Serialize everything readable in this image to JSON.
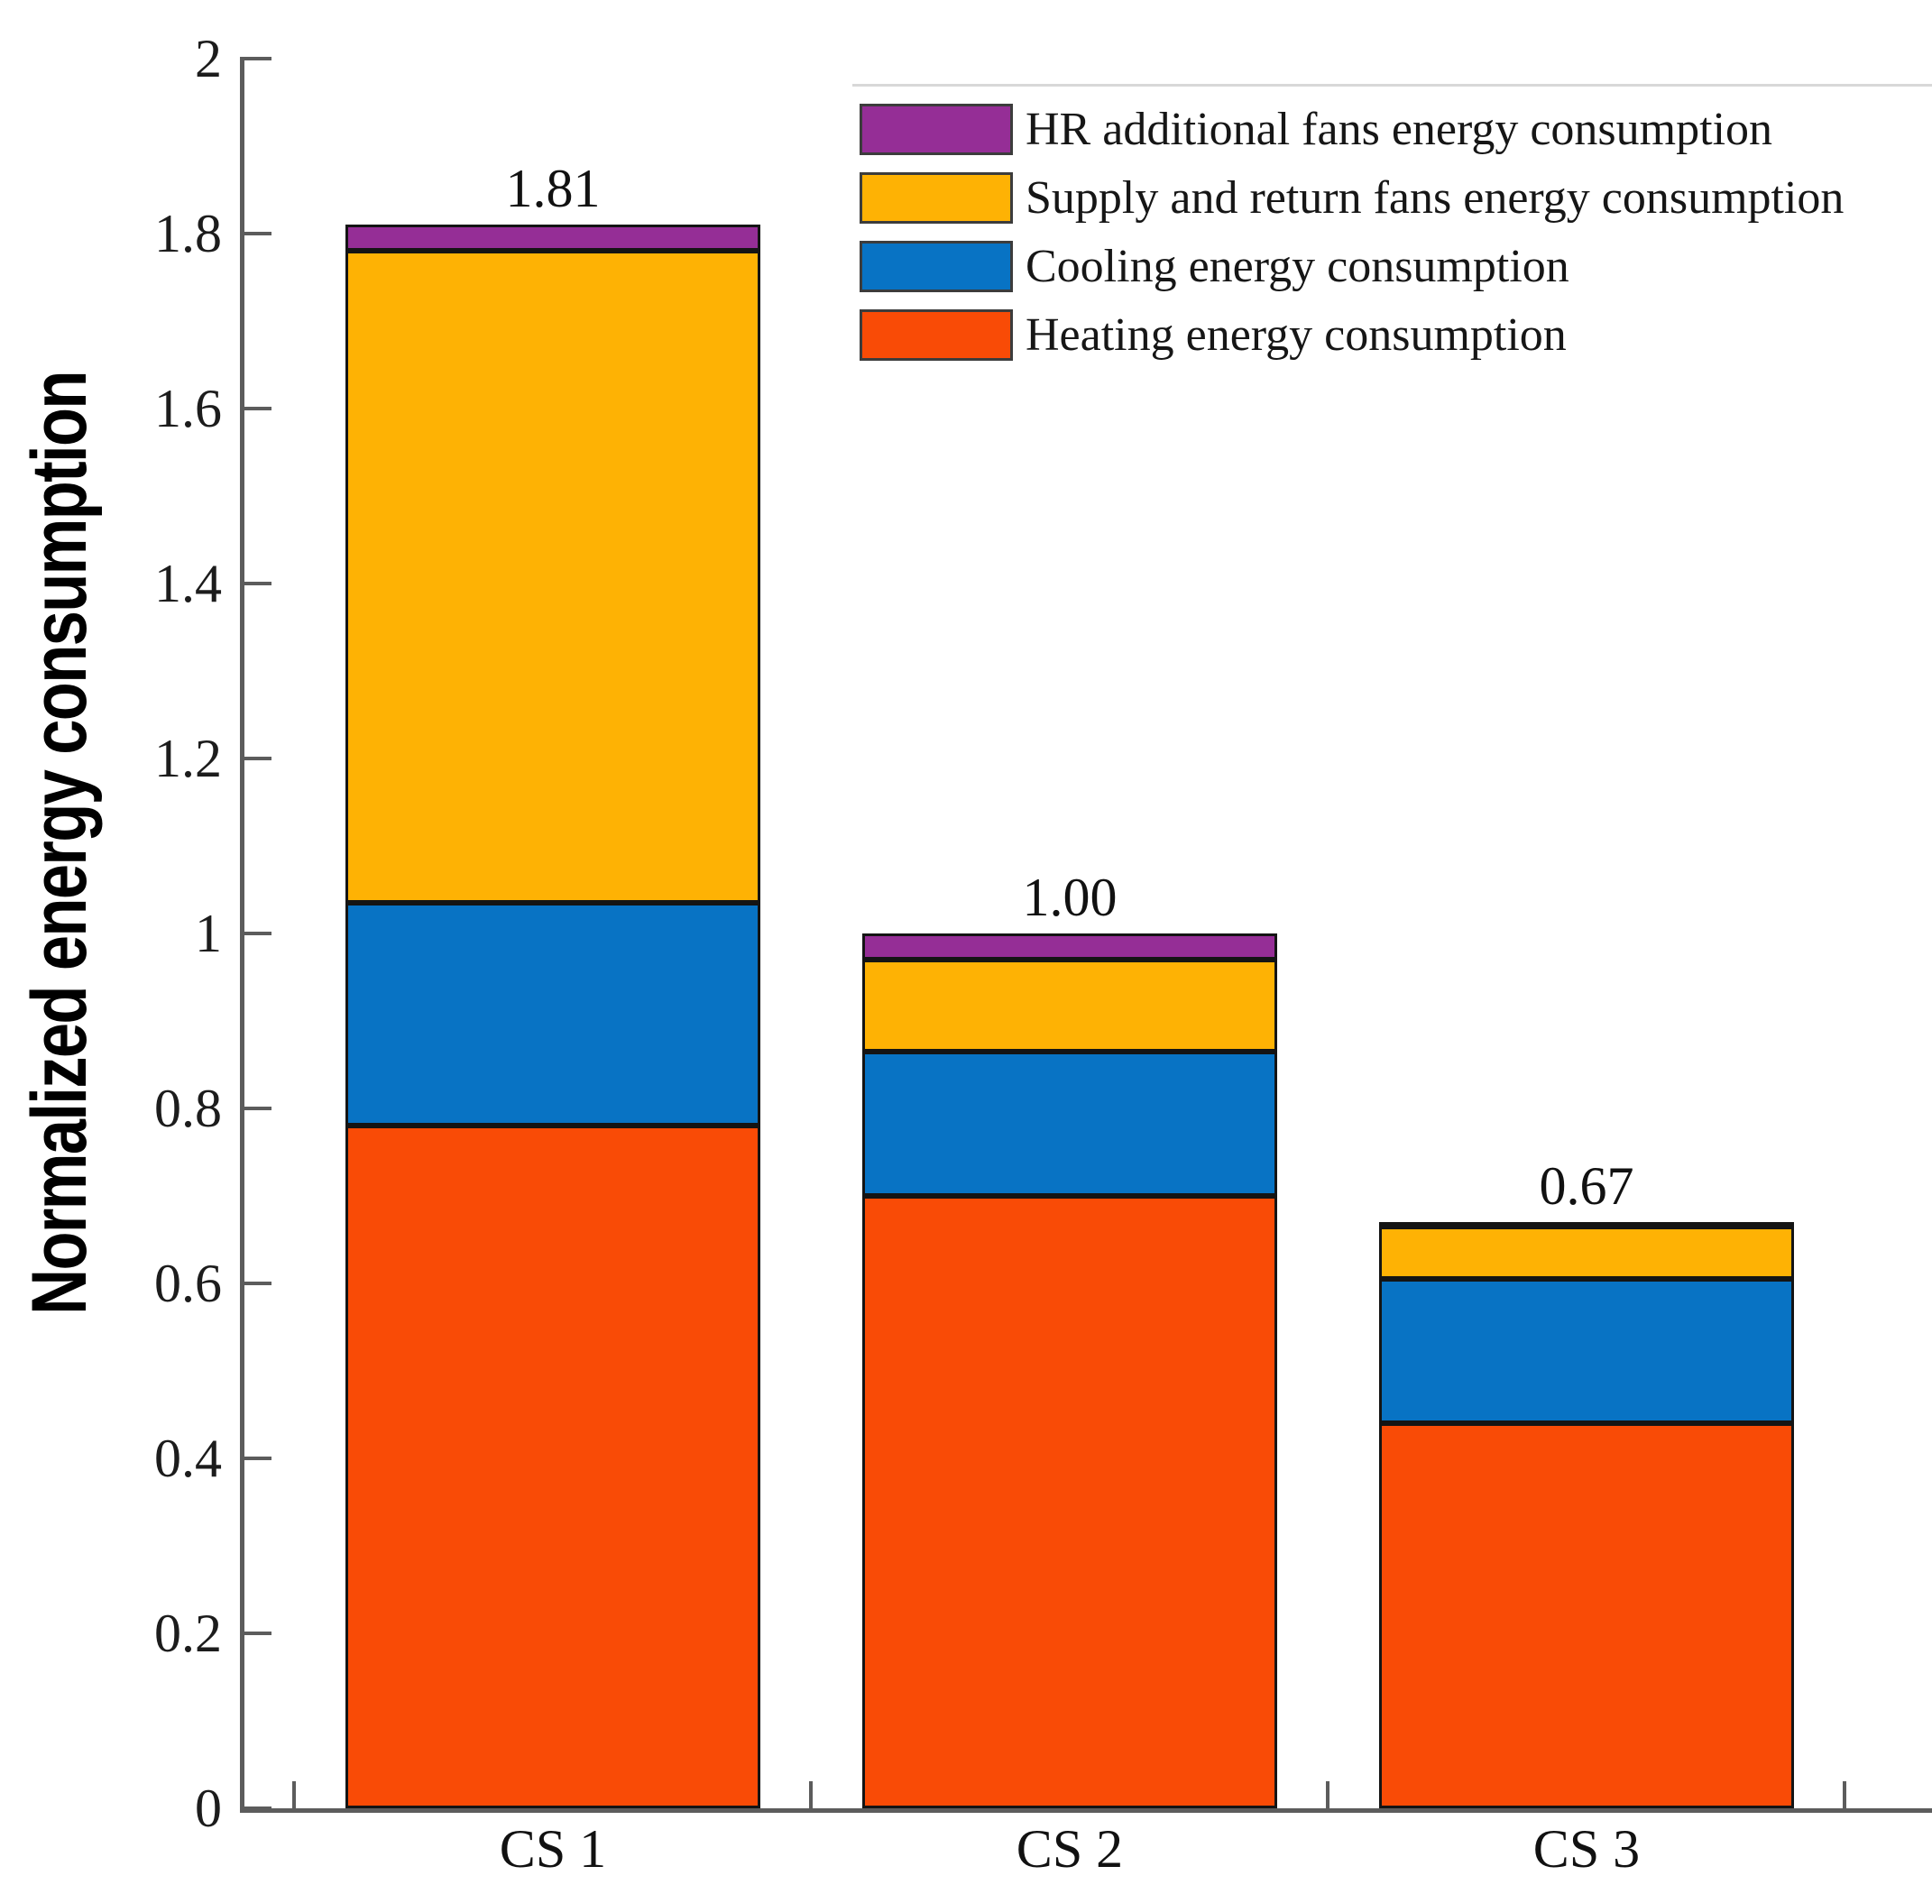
{
  "figure": {
    "background_color": "#ffffff",
    "axis_color": "#5c5c5c",
    "bar_edge_color": "#141414"
  },
  "chart_data": {
    "type": "bar",
    "stacked": true,
    "title": "",
    "categories": [
      "CS 1",
      "CS 2",
      "CS 3"
    ],
    "series": [
      {
        "name": "Heating energy consumption",
        "color": "#F94B06",
        "values": [
          0.78,
          0.7,
          0.44
        ]
      },
      {
        "name": "Cooling energy consumption",
        "color": "#0873C4",
        "values": [
          0.255,
          0.165,
          0.165
        ]
      },
      {
        "name": "Supply and return fans energy consumption",
        "color": "#FEB204",
        "values": [
          0.745,
          0.105,
          0.06
        ]
      },
      {
        "name": "HR additional fans energy consumption",
        "color": "#952E96",
        "values": [
          0.03,
          0.03,
          0.005
        ]
      }
    ],
    "bar_total_labels": [
      "1.81",
      "1.00",
      "0.67"
    ],
    "xlabel": "",
    "ylabel": "Normalized energy consumption",
    "ylim": [
      0,
      2
    ],
    "yticks": {
      "values": [
        0,
        0.2,
        0.4,
        0.6,
        0.8,
        1,
        1.2,
        1.4,
        1.6,
        1.8,
        2
      ],
      "labels": [
        "0",
        "0.2",
        "0.4",
        "0.6",
        "0.8",
        "1",
        "1.2",
        "1.4",
        "1.6",
        "1.8",
        "2"
      ]
    },
    "grid": false,
    "legend": {
      "position": "upper-right",
      "order_top_to_bottom": [
        3,
        2,
        1,
        0
      ]
    }
  }
}
